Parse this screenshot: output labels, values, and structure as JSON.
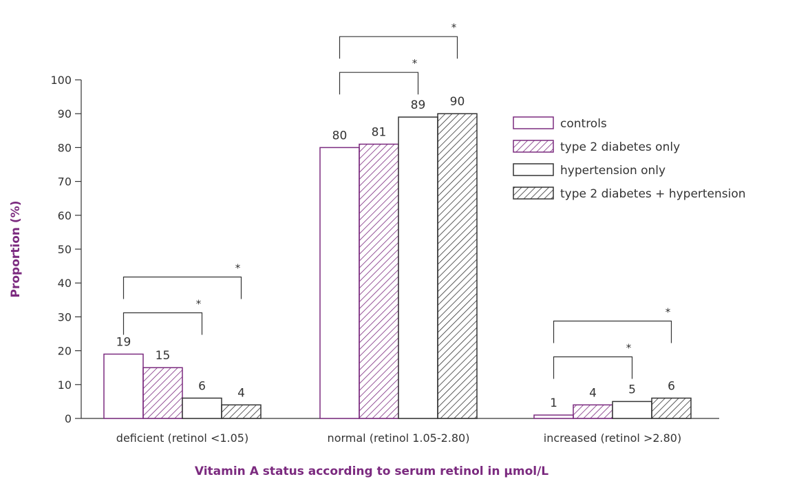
{
  "chart_data": {
    "type": "bar",
    "xlabel": "Vitamin A status according to serum retinol in µmol/L",
    "ylabel": "Proportion (%)",
    "ylim": [
      0,
      100
    ],
    "yticks": [
      0,
      10,
      20,
      30,
      40,
      50,
      60,
      70,
      80,
      90,
      100
    ],
    "categories": [
      "deficient (retinol <1.05)",
      "normal (retinol 1.05-2.80)",
      "increased (retinol >2.80)"
    ],
    "series": [
      {
        "name": "controls",
        "values": [
          19,
          80,
          1
        ],
        "color": "#7b2a7f",
        "pattern": "solid-outline"
      },
      {
        "name": "type 2 diabetes only",
        "values": [
          15,
          81,
          4
        ],
        "color": "#7b2a7f",
        "pattern": "hatched"
      },
      {
        "name": "hypertension only",
        "values": [
          6,
          89,
          5
        ],
        "color": "#333333",
        "pattern": "solid-outline"
      },
      {
        "name": "type 2 diabetes + hypertension",
        "values": [
          4,
          90,
          6
        ],
        "color": "#333333",
        "pattern": "hatched"
      }
    ],
    "data_labels": [
      [
        "19",
        "15",
        "6",
        "4"
      ],
      [
        "80",
        "81",
        "89",
        "90"
      ],
      [
        "1",
        "4",
        "5",
        "6"
      ]
    ],
    "significance": [
      {
        "category": 0,
        "from_series": 0,
        "to_series": 2,
        "label": "*"
      },
      {
        "category": 0,
        "from_series": 0,
        "to_series": 3,
        "label": "*"
      },
      {
        "category": 1,
        "from_series": 0,
        "to_series": 2,
        "label": "*"
      },
      {
        "category": 1,
        "from_series": 0,
        "to_series": 3,
        "label": "*"
      },
      {
        "category": 2,
        "from_series": 0,
        "to_series": 2,
        "label": "*"
      },
      {
        "category": 2,
        "from_series": 0,
        "to_series": 3,
        "label": "*"
      }
    ],
    "legend_position": "right",
    "grid": false,
    "accent_color": "#7b2a7f"
  }
}
